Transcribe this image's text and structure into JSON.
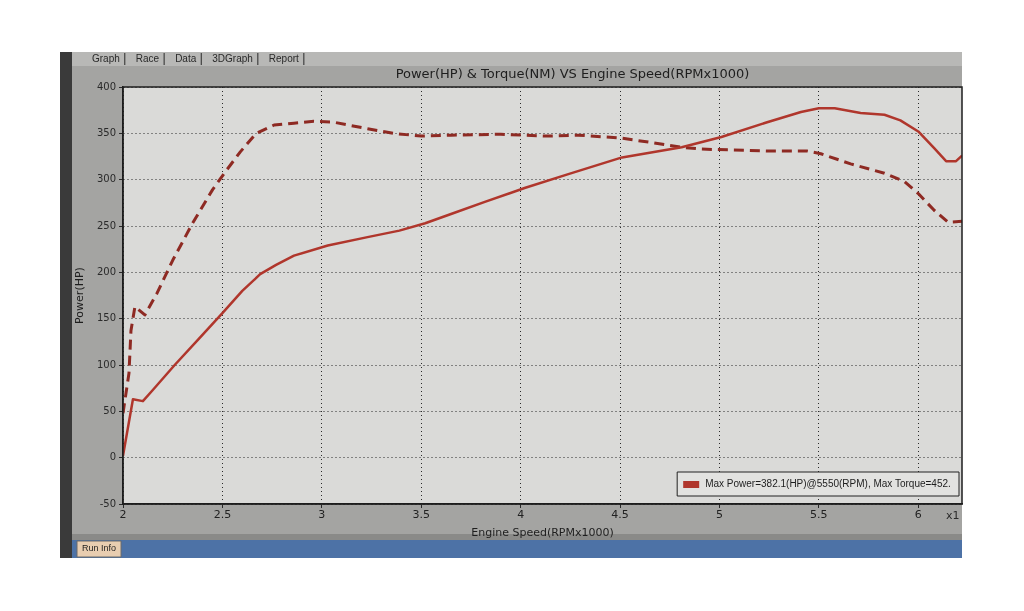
{
  "chart_data": {
    "type": "line",
    "title": "Power(HP) & Torque(NM) VS Engine Speed(RPMx1000)",
    "xlabel": "Engine Speed(RPMx1000)",
    "ylabel": "Power(HP)",
    "xlim": [
      2,
      6.22
    ],
    "xticks": [
      2,
      2.5,
      3,
      3.5,
      4,
      4.5,
      5,
      5.5,
      6
    ],
    "ylim": [
      -50,
      400
    ],
    "yticks": [
      -50,
      0,
      50,
      100,
      150,
      200,
      250,
      300,
      350,
      400
    ],
    "grid": true,
    "legend": "bottom right",
    "marker": "none",
    "annotations": [
      "Graph",
      "Race",
      "Data",
      "3DGraph",
      "Report",
      "Run Info",
      "x1"
    ],
    "series": [
      {
        "name": "Max Power=382.1(HP)@5550(RPM), Max Torque=452.",
        "color": "#b0362c",
        "line_style": "solid",
        "x": [
          2.0,
          2.05,
          2.1,
          2.15,
          2.26,
          2.38,
          2.5,
          2.6,
          2.69,
          2.77,
          2.86,
          3.03,
          3.23,
          3.39,
          3.52,
          3.65,
          3.82,
          4.02,
          4.24,
          4.51,
          4.81,
          5.01,
          5.24,
          5.41,
          5.5,
          5.58,
          5.71,
          5.83,
          5.91,
          6.0,
          6.08,
          6.14,
          6.19,
          6.22
        ],
        "values": [
          2,
          63,
          61,
          73,
          100,
          128,
          156,
          180,
          198,
          208,
          218,
          229,
          238,
          245,
          253,
          263,
          276,
          291,
          306,
          324,
          335,
          346,
          362,
          373,
          377,
          377,
          372,
          370,
          364,
          352,
          334,
          320,
          320,
          326
        ]
      },
      {
        "color": "#8e2a23",
        "line_style": "dashed",
        "x": [
          2.0,
          2.03,
          2.04,
          2.06,
          2.11,
          2.17,
          2.25,
          2.35,
          2.45,
          2.52,
          2.59,
          2.67,
          2.76,
          2.86,
          2.96,
          3.06,
          3.23,
          3.36,
          3.5,
          3.65,
          3.9,
          4.13,
          4.29,
          4.5,
          4.66,
          4.81,
          4.91,
          5.24,
          5.44,
          5.51,
          5.66,
          5.83,
          5.93,
          6.0,
          6.08,
          6.15,
          6.22
        ],
        "values": [
          48,
          91,
          137,
          163,
          154,
          177,
          213,
          253,
          289,
          310,
          330,
          350,
          359,
          361,
          363,
          362,
          355,
          350,
          347,
          348,
          349,
          347,
          348,
          345,
          340,
          335,
          333,
          331,
          331,
          328,
          317,
          307,
          298,
          285,
          267,
          254,
          255
        ]
      }
    ]
  }
}
